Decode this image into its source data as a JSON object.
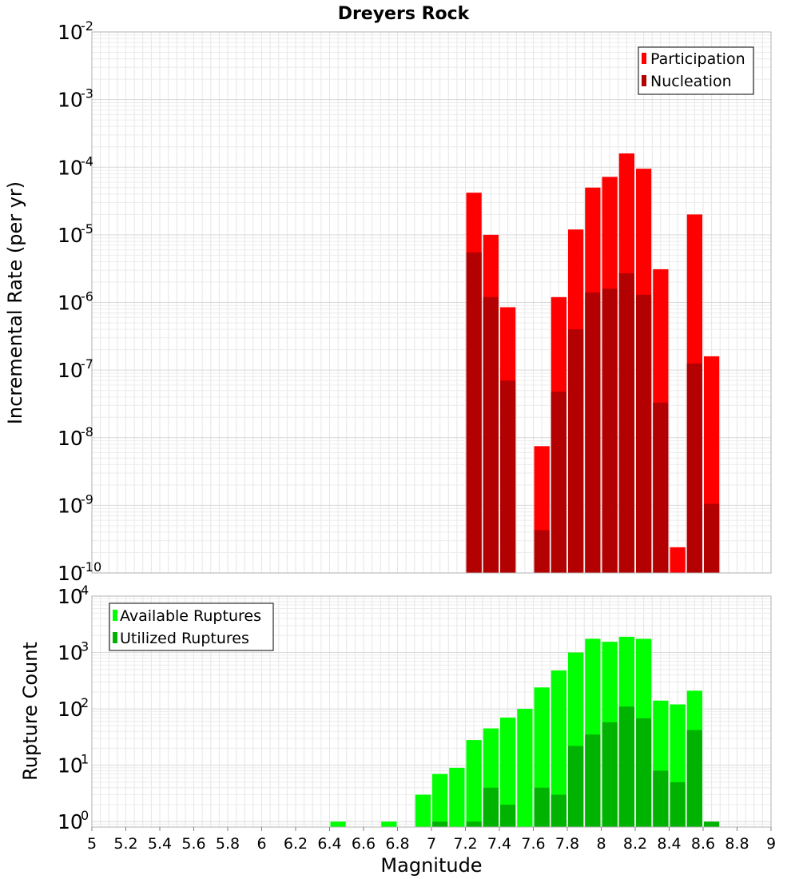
{
  "title": "Dreyers Rock",
  "xlabel": "Magnitude",
  "x_ticks": [
    "5",
    "5.2",
    "5.4",
    "5.6",
    "5.8",
    "6",
    "6.2",
    "6.4",
    "6.6",
    "6.8",
    "7",
    "7.2",
    "7.4",
    "7.6",
    "7.8",
    "8",
    "8.2",
    "8.4",
    "8.6",
    "8.8",
    "9"
  ],
  "chart_data": [
    {
      "type": "bar",
      "ylabel": "Incremental Rate (per yr)",
      "yscale": "log",
      "xlim": [
        5,
        9
      ],
      "ylim": [
        1e-10,
        0.01
      ],
      "y_ticks": {
        "base": "10",
        "exponents": [
          "-10",
          "-9",
          "-8",
          "-7",
          "-6",
          "-5",
          "-4",
          "-3",
          "-2"
        ]
      },
      "grid": true,
      "legend_position": "top-right",
      "bin_width": 0.1,
      "x": [
        7.25,
        7.35,
        7.45,
        7.65,
        7.75,
        7.85,
        7.95,
        8.05,
        8.15,
        8.25,
        8.35,
        8.45,
        8.55,
        8.65
      ],
      "series": [
        {
          "name": "Participation",
          "color": "#ff0000",
          "values": [
            4.2e-05,
            1e-05,
            8.5e-07,
            7.5e-09,
            1.2e-06,
            1.2e-05,
            5e-05,
            7.2e-05,
            0.00016,
            9.5e-05,
            3.1e-06,
            2.4e-10,
            2e-05,
            1.6e-07
          ]
        },
        {
          "name": "Nucleation",
          "color": "#b30000",
          "values": [
            5.5e-06,
            1.2e-06,
            7e-08,
            4.3e-10,
            4.8e-08,
            4e-07,
            1.4e-06,
            1.6e-06,
            2.7e-06,
            1.3e-06,
            3.3e-08,
            null,
            1.25e-07,
            1.05e-09
          ]
        }
      ]
    },
    {
      "type": "bar",
      "ylabel": "Rupture Count",
      "yscale": "log",
      "xlim": [
        5,
        9
      ],
      "ylim": [
        0.8,
        10000.0
      ],
      "y_ticks": {
        "base": "10",
        "exponents": [
          "0",
          "1",
          "2",
          "3",
          "4"
        ]
      },
      "grid": true,
      "legend_position": "top-left",
      "bin_width": 0.1,
      "x": [
        6.45,
        6.75,
        6.95,
        7.05,
        7.15,
        7.25,
        7.35,
        7.45,
        7.55,
        7.65,
        7.75,
        7.85,
        7.95,
        8.05,
        8.15,
        8.25,
        8.35,
        8.45,
        8.55,
        8.65
      ],
      "series": [
        {
          "name": "Available Ruptures",
          "color": "#00ff00",
          "values": [
            1,
            1,
            3,
            7,
            9,
            28,
            45,
            70,
            100,
            240,
            480,
            1000,
            1750,
            1550,
            1900,
            1750,
            140,
            120,
            210,
            null
          ]
        },
        {
          "name": "Utilized Ruptures",
          "color": "#00b300",
          "values": [
            null,
            null,
            null,
            1,
            null,
            1,
            4,
            2,
            null,
            4,
            3,
            22,
            35,
            58,
            110,
            68,
            8,
            5,
            42,
            1
          ]
        }
      ]
    }
  ]
}
